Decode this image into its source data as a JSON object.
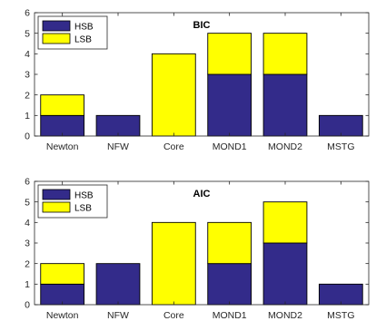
{
  "colors": {
    "hsb": "#332b8a",
    "lsb": "#ffff00",
    "axis": "#262626",
    "background": "#ffffff"
  },
  "chart_data": [
    {
      "type": "bar",
      "stacked": true,
      "title": "BIC",
      "xlabel": "",
      "ylabel": "",
      "categories": [
        "Newton",
        "NFW",
        "Core",
        "MOND1",
        "MOND2",
        "MSTG"
      ],
      "ylim": [
        0,
        6
      ],
      "yticks": [
        0,
        1,
        2,
        3,
        4,
        5,
        6
      ],
      "grid": false,
      "legend_position": "top-left",
      "series": [
        {
          "name": "HSB",
          "color": "#332b8a",
          "values": [
            1,
            1,
            0,
            3,
            3,
            1
          ]
        },
        {
          "name": "LSB",
          "color": "#ffff00",
          "values": [
            1,
            0,
            4,
            2,
            2,
            0
          ]
        }
      ]
    },
    {
      "type": "bar",
      "stacked": true,
      "title": "AIC",
      "xlabel": "",
      "ylabel": "",
      "categories": [
        "Newton",
        "NFW",
        "Core",
        "MOND1",
        "MOND2",
        "MSTG"
      ],
      "ylim": [
        0,
        6
      ],
      "yticks": [
        0,
        1,
        2,
        3,
        4,
        5,
        6
      ],
      "grid": false,
      "legend_position": "top-left",
      "series": [
        {
          "name": "HSB",
          "color": "#332b8a",
          "values": [
            1,
            2,
            0,
            2,
            3,
            1
          ]
        },
        {
          "name": "LSB",
          "color": "#ffff00",
          "values": [
            1,
            0,
            4,
            2,
            2,
            0
          ]
        }
      ]
    }
  ]
}
